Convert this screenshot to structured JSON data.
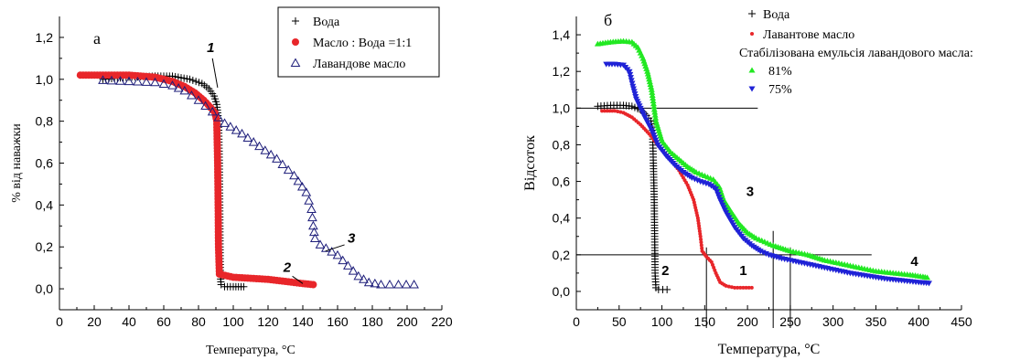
{
  "chart_data": [
    {
      "type": "scatter",
      "panel_label": "a",
      "xlabel": "Температура, °C",
      "ylabel": "% від наважки",
      "xlim": [
        0,
        220
      ],
      "ylim": [
        -0.1,
        1.3
      ],
      "x_ticks": [
        0,
        20,
        40,
        60,
        80,
        100,
        120,
        140,
        160,
        180,
        200,
        220
      ],
      "y_ticks": [
        0.0,
        0.2,
        0.4,
        0.6,
        0.8,
        1.0,
        1.2
      ],
      "y_tick_labels": [
        "0,0",
        "0,2",
        "0,4",
        "0,6",
        "0,8",
        "1,0",
        "1,2"
      ],
      "grid": false,
      "legend_position": "top-right",
      "series": [
        {
          "name": "Вода",
          "marker": "plus",
          "color": "#000000",
          "points": [
            [
              25,
              1.0
            ],
            [
              40,
              1.01
            ],
            [
              55,
              1.015
            ],
            [
              65,
              1.015
            ],
            [
              75,
              1.0
            ],
            [
              82,
              0.98
            ],
            [
              86,
              0.955
            ],
            [
              89,
              0.92
            ],
            [
              90.5,
              0.88
            ],
            [
              91.5,
              0.8
            ],
            [
              92,
              0.6
            ],
            [
              92.2,
              0.4
            ],
            [
              92.4,
              0.2
            ],
            [
              92.6,
              0.06
            ],
            [
              93,
              0.02
            ],
            [
              95,
              0.01
            ],
            [
              100,
              0.01
            ],
            [
              106,
              0.01
            ]
          ]
        },
        {
          "name": "Масло : Вода =1:1",
          "marker": "circle",
          "color": "#e8262a",
          "points": [
            [
              12,
              1.02
            ],
            [
              25,
              1.02
            ],
            [
              40,
              1.02
            ],
            [
              55,
              1.01
            ],
            [
              65,
              0.99
            ],
            [
              72,
              0.965
            ],
            [
              78,
              0.935
            ],
            [
              83,
              0.9
            ],
            [
              87,
              0.865
            ],
            [
              89.5,
              0.84
            ],
            [
              90.5,
              0.8
            ],
            [
              91,
              0.6
            ],
            [
              91.3,
              0.4
            ],
            [
              91.5,
              0.2
            ],
            [
              92,
              0.07
            ],
            [
              100,
              0.055
            ],
            [
              110,
              0.05
            ],
            [
              120,
              0.045
            ],
            [
              130,
              0.035
            ],
            [
              140,
              0.025
            ],
            [
              146,
              0.02
            ]
          ]
        },
        {
          "name": "Лавандове масло",
          "marker": "triangle",
          "color": "#1d1d7a",
          "points": [
            [
              25,
              0.995
            ],
            [
              40,
              0.99
            ],
            [
              55,
              0.985
            ],
            [
              65,
              0.97
            ],
            [
              72,
              0.945
            ],
            [
              80,
              0.9
            ],
            [
              88,
              0.845
            ],
            [
              95,
              0.79
            ],
            [
              105,
              0.74
            ],
            [
              115,
              0.68
            ],
            [
              125,
              0.62
            ],
            [
              135,
              0.54
            ],
            [
              142,
              0.46
            ],
            [
              145,
              0.38
            ],
            [
              146,
              0.3
            ],
            [
              147,
              0.24
            ],
            [
              150,
              0.21
            ],
            [
              160,
              0.16
            ],
            [
              166,
              0.11
            ],
            [
              172,
              0.06
            ],
            [
              178,
              0.03
            ],
            [
              185,
              0.02
            ],
            [
              195,
              0.02
            ],
            [
              204,
              0.02
            ]
          ]
        }
      ],
      "annotations": [
        {
          "text": "1",
          "x": 87,
          "y": 1.13
        },
        {
          "text": "2",
          "x": 131,
          "y": 0.08
        },
        {
          "text": "3",
          "x": 168,
          "y": 0.22
        }
      ]
    },
    {
      "type": "scatter",
      "panel_label": "б",
      "xlabel": "Температура, °C",
      "ylabel": "Відсоток",
      "xlim": [
        0,
        450
      ],
      "ylim": [
        -0.1,
        1.5
      ],
      "x_ticks": [
        0,
        50,
        100,
        150,
        200,
        250,
        300,
        350,
        400,
        450
      ],
      "y_ticks": [
        0.0,
        0.2,
        0.4,
        0.6,
        0.8,
        1.0,
        1.2,
        1.4
      ],
      "y_tick_labels": [
        "0,0",
        "0,2",
        "0,4",
        "0,6",
        "0,8",
        "1,0",
        "1,2",
        "1,4"
      ],
      "grid": false,
      "legend_position": "top-center",
      "legend_subtitle": "Стабілізована емульсія лавандового масла:",
      "series": [
        {
          "name": "Вода",
          "marker": "plus",
          "color": "#000000",
          "points": [
            [
              25,
              1.01
            ],
            [
              40,
              1.015
            ],
            [
              55,
              1.015
            ],
            [
              65,
              1.01
            ],
            [
              75,
              0.99
            ],
            [
              82,
              0.96
            ],
            [
              87,
              0.93
            ],
            [
              89,
              0.88
            ],
            [
              90,
              0.7
            ],
            [
              91,
              0.5
            ],
            [
              91.5,
              0.3
            ],
            [
              92,
              0.1
            ],
            [
              93,
              0.02
            ],
            [
              96,
              0.01
            ],
            [
              101,
              0.01
            ],
            [
              106,
              0.01
            ]
          ]
        },
        {
          "name": "Лавантове масло",
          "marker": "dot",
          "color": "#e8262a",
          "points": [
            [
              30,
              0.985
            ],
            [
              45,
              0.985
            ],
            [
              55,
              0.975
            ],
            [
              65,
              0.95
            ],
            [
              75,
              0.91
            ],
            [
              85,
              0.86
            ],
            [
              95,
              0.8
            ],
            [
              110,
              0.72
            ],
            [
              120,
              0.66
            ],
            [
              130,
              0.58
            ],
            [
              137,
              0.5
            ],
            [
              142,
              0.4
            ],
            [
              145,
              0.3
            ],
            [
              147,
              0.22
            ],
            [
              152,
              0.19
            ],
            [
              158,
              0.16
            ],
            [
              163,
              0.1
            ],
            [
              168,
              0.05
            ],
            [
              175,
              0.03
            ],
            [
              185,
              0.02
            ],
            [
              195,
              0.02
            ],
            [
              205,
              0.02
            ]
          ]
        },
        {
          "name": "81%",
          "marker": "triangle-up",
          "color": "#22e822",
          "points": [
            [
              25,
              1.35
            ],
            [
              40,
              1.36
            ],
            [
              55,
              1.365
            ],
            [
              65,
              1.36
            ],
            [
              72,
              1.33
            ],
            [
              78,
              1.27
            ],
            [
              83,
              1.2
            ],
            [
              88,
              1.1
            ],
            [
              93,
              0.93
            ],
            [
              100,
              0.82
            ],
            [
              110,
              0.76
            ],
            [
              120,
              0.72
            ],
            [
              130,
              0.68
            ],
            [
              140,
              0.65
            ],
            [
              150,
              0.63
            ],
            [
              160,
              0.61
            ],
            [
              167,
              0.57
            ],
            [
              172,
              0.5
            ],
            [
              180,
              0.44
            ],
            [
              190,
              0.37
            ],
            [
              200,
              0.32
            ],
            [
              210,
              0.29
            ],
            [
              220,
              0.27
            ],
            [
              230,
              0.25
            ],
            [
              250,
              0.22
            ],
            [
              270,
              0.2
            ],
            [
              290,
              0.17
            ],
            [
              310,
              0.15
            ],
            [
              330,
              0.13
            ],
            [
              350,
              0.11
            ],
            [
              370,
              0.1
            ],
            [
              390,
              0.09
            ],
            [
              405,
              0.08
            ],
            [
              410,
              0.075
            ]
          ]
        },
        {
          "name": "75%",
          "marker": "triangle-down",
          "color": "#1f22d6",
          "points": [
            [
              35,
              1.24
            ],
            [
              45,
              1.24
            ],
            [
              55,
              1.235
            ],
            [
              62,
              1.2
            ],
            [
              66,
              1.12
            ],
            [
              70,
              1.05
            ],
            [
              75,
              1.0
            ],
            [
              80,
              0.95
            ],
            [
              88,
              0.88
            ],
            [
              95,
              0.8
            ],
            [
              105,
              0.74
            ],
            [
              115,
              0.69
            ],
            [
              125,
              0.65
            ],
            [
              135,
              0.62
            ],
            [
              145,
              0.6
            ],
            [
              155,
              0.585
            ],
            [
              163,
              0.56
            ],
            [
              168,
              0.5
            ],
            [
              175,
              0.43
            ],
            [
              185,
              0.35
            ],
            [
              195,
              0.29
            ],
            [
              205,
              0.25
            ],
            [
              215,
              0.22
            ],
            [
              225,
              0.2
            ],
            [
              240,
              0.18
            ],
            [
              260,
              0.16
            ],
            [
              280,
              0.14
            ],
            [
              300,
              0.12
            ],
            [
              320,
              0.1
            ],
            [
              340,
              0.085
            ],
            [
              360,
              0.07
            ],
            [
              380,
              0.06
            ],
            [
              400,
              0.05
            ],
            [
              412,
              0.045
            ]
          ]
        }
      ],
      "annotations": [
        {
          "text": "1",
          "x": 195,
          "y": 0.09
        },
        {
          "text": "2",
          "x": 104,
          "y": 0.09
        },
        {
          "text": "3",
          "x": 203,
          "y": 0.52
        },
        {
          "text": "4",
          "x": 395,
          "y": 0.14
        }
      ],
      "reference_lines": [
        {
          "orientation": "horizontal",
          "y": 1.0,
          "x_range": [
            0,
            212
          ]
        },
        {
          "orientation": "horizontal",
          "y": 0.2,
          "x_range": [
            0,
            345
          ]
        },
        {
          "orientation": "vertical",
          "x": 152,
          "y_range": [
            -0.1,
            0.24
          ]
        },
        {
          "orientation": "vertical",
          "x": 230,
          "y_range": [
            -0.1,
            0.33
          ]
        },
        {
          "orientation": "vertical",
          "x": 250,
          "y_range": [
            -0.1,
            0.24
          ]
        }
      ]
    }
  ],
  "colors": {
    "axis": "#000000",
    "water": "#000000",
    "oil_red": "#e8262a",
    "lavender_triangle": "#1d1d7a",
    "green": "#22e822",
    "blue": "#1f22d6"
  }
}
